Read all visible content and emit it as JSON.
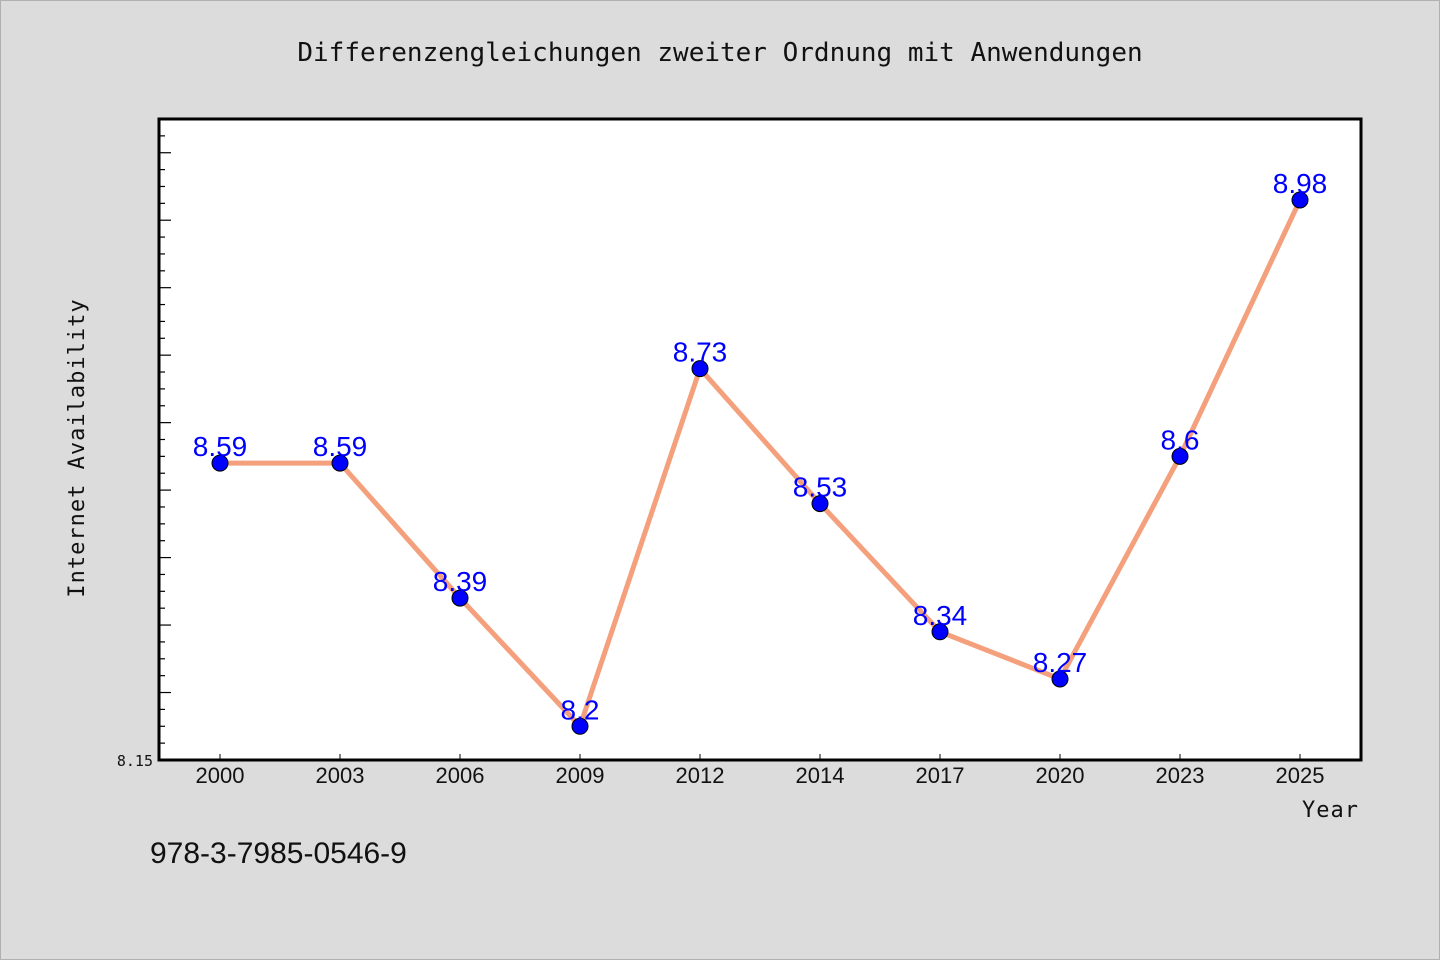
{
  "chart_data": {
    "type": "line",
    "title": "Differenzengleichungen zweiter Ordnung mit Anwendungen",
    "xlabel": "Year",
    "ylabel": "Internet Availability",
    "categories": [
      "2000",
      "2003",
      "2006",
      "2009",
      "2012",
      "2014",
      "2017",
      "2020",
      "2023",
      "2025"
    ],
    "series": [
      {
        "values": [
          8.59,
          8.59,
          8.39,
          8.2,
          8.73,
          8.53,
          8.34,
          8.27,
          8.6,
          8.98
        ],
        "labels": [
          "8.59",
          "8.59",
          "8.39",
          "8.2",
          "8.73",
          "8.53",
          "8.34",
          "8.27",
          "8.6",
          "8.98"
        ]
      }
    ],
    "ylim": [
      8.15,
      9.1
    ],
    "yticks_labeled": [
      "8.15"
    ],
    "grid": false,
    "legend": "none",
    "colors": {
      "line": "#f4a07c",
      "marker": "#0000ff",
      "data_label": "#0000ff",
      "plot_bg": "#ffffff",
      "page_bg": "#dcdcdc"
    }
  },
  "footer_text": "978-3-7985-0546-9"
}
